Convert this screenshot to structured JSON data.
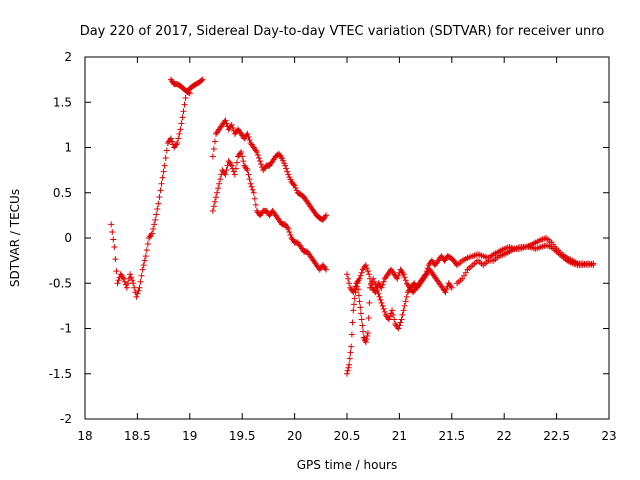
{
  "chart_data": {
    "type": "scatter",
    "title": "Day 220 of 2017, Sidereal Day-to-day VTEC variation (SDTVAR) for receiver unro",
    "xlabel": "GPS time / hours",
    "ylabel": "SDTVAR / TECUs",
    "xlim": [
      18,
      23
    ],
    "ylim": [
      -2,
      2
    ],
    "xticks": [
      "18",
      "18.5",
      "19",
      "19.5",
      "20",
      "20.5",
      "21",
      "21.5",
      "22",
      "22.5",
      "23"
    ],
    "yticks": [
      "-2",
      "-1.5",
      "-1",
      "-0.5",
      "0",
      "0.5",
      "1",
      "1.5",
      "2"
    ],
    "marker": "+",
    "color": "#e00000",
    "grid": false,
    "series": [
      {
        "name": "SDTVAR",
        "segments": [
          {
            "x": [
              18.25,
              18.28,
              18.31,
              18.34,
              18.37,
              18.4,
              18.43,
              18.46,
              18.49,
              18.52,
              18.55,
              18.58,
              18.61,
              18.64,
              18.67,
              18.7,
              18.73,
              18.76,
              18.79,
              18.82,
              18.85,
              18.88,
              18.91,
              18.94,
              18.97,
              19.0,
              19.03,
              19.06,
              19.09,
              19.12
            ],
            "y": [
              0.15,
              -0.1,
              -0.5,
              -0.4,
              -0.45,
              -0.55,
              -0.4,
              -0.5,
              -0.65,
              -0.55,
              -0.35,
              -0.2,
              0.0,
              0.05,
              0.2,
              0.38,
              0.6,
              0.8,
              1.05,
              1.1,
              1.0,
              1.05,
              1.2,
              1.4,
              1.62,
              1.65,
              1.68,
              1.7,
              1.72,
              1.75
            ]
          },
          {
            "x": [
              18.82,
              18.85,
              18.88,
              18.91,
              18.94,
              18.97,
              19.0
            ],
            "y": [
              1.75,
              1.7,
              1.7,
              1.68,
              1.65,
              1.62,
              1.6
            ]
          },
          {
            "x": [
              19.22,
              19.25,
              19.28,
              19.31,
              19.34,
              19.37,
              19.4,
              19.43,
              19.46,
              19.49,
              19.52,
              19.55,
              19.58,
              19.61,
              19.64,
              19.67,
              19.7,
              19.73,
              19.76,
              19.79,
              19.82,
              19.85,
              19.88,
              19.91,
              19.94,
              19.97,
              20.0,
              20.03,
              20.06,
              20.09,
              20.12,
              20.15,
              20.18,
              20.21,
              20.24,
              20.27,
              20.3
            ],
            "y": [
              0.9,
              1.15,
              1.2,
              1.25,
              1.3,
              1.2,
              1.25,
              1.15,
              1.2,
              1.15,
              1.1,
              1.15,
              1.05,
              1.0,
              0.95,
              0.85,
              0.75,
              0.8,
              0.8,
              0.85,
              0.9,
              0.93,
              0.88,
              0.8,
              0.7,
              0.62,
              0.58,
              0.5,
              0.48,
              0.45,
              0.4,
              0.35,
              0.3,
              0.25,
              0.22,
              0.2,
              0.25
            ]
          },
          {
            "x": [
              19.22,
              19.25,
              19.28,
              19.31,
              19.34,
              19.37,
              19.4,
              19.43,
              19.46,
              19.49,
              19.52,
              19.55,
              19.58,
              19.61,
              19.64,
              19.67,
              19.7,
              19.73,
              19.76,
              19.79,
              19.82,
              19.85,
              19.88,
              19.91,
              19.94,
              19.97,
              20.0,
              20.03,
              20.06,
              20.09,
              20.12,
              20.15,
              20.18,
              20.21,
              20.24,
              20.27,
              20.3
            ],
            "y": [
              0.3,
              0.45,
              0.6,
              0.75,
              0.7,
              0.85,
              0.8,
              0.7,
              0.9,
              0.95,
              0.8,
              0.75,
              0.6,
              0.5,
              0.3,
              0.25,
              0.3,
              0.3,
              0.25,
              0.3,
              0.25,
              0.2,
              0.15,
              0.15,
              0.1,
              0.0,
              -0.05,
              -0.05,
              -0.1,
              -0.15,
              -0.15,
              -0.2,
              -0.25,
              -0.3,
              -0.35,
              -0.3,
              -0.35
            ]
          },
          {
            "x": [
              20.5,
              20.52,
              20.54,
              20.56,
              20.58,
              20.6,
              20.62,
              20.64,
              20.66,
              20.68,
              20.7,
              20.72,
              20.75,
              20.78,
              20.81,
              20.84,
              20.87,
              20.9,
              20.93,
              20.96,
              20.99,
              21.02,
              21.05,
              21.08,
              21.11,
              21.14,
              21.17,
              21.2,
              21.23,
              21.26,
              21.29,
              21.32,
              21.35,
              21.38,
              21.41,
              21.44,
              21.47,
              21.5
            ],
            "y": [
              -1.5,
              -1.4,
              -1.2,
              -0.8,
              -0.6,
              -0.5,
              -0.7,
              -0.9,
              -1.1,
              -1.15,
              -1.05,
              -0.55,
              -0.45,
              -0.55,
              -0.65,
              -0.75,
              -0.85,
              -0.9,
              -0.8,
              -0.95,
              -1.0,
              -0.9,
              -0.75,
              -0.6,
              -0.55,
              -0.5,
              -0.55,
              -0.5,
              -0.45,
              -0.4,
              -0.35,
              -0.4,
              -0.45,
              -0.5,
              -0.55,
              -0.6,
              -0.5,
              -0.55
            ]
          },
          {
            "x": [
              20.5,
              20.53,
              20.56,
              20.59,
              20.62,
              20.65,
              20.68,
              20.71,
              20.74,
              20.77,
              20.8,
              20.83,
              20.86,
              20.89,
              20.92,
              20.95,
              20.98,
              21.01,
              21.04,
              21.07,
              21.1,
              21.13,
              21.16,
              21.19,
              21.22,
              21.25,
              21.28,
              21.31,
              21.34,
              21.37,
              21.4,
              21.43,
              21.46,
              21.49,
              21.52,
              21.55
            ],
            "y": [
              -0.4,
              -0.55,
              -0.6,
              -0.5,
              -0.45,
              -0.35,
              -0.3,
              -0.4,
              -0.55,
              -0.6,
              -0.5,
              -0.55,
              -0.45,
              -0.4,
              -0.35,
              -0.4,
              -0.45,
              -0.35,
              -0.4,
              -0.5,
              -0.55,
              -0.6,
              -0.55,
              -0.5,
              -0.45,
              -0.4,
              -0.3,
              -0.25,
              -0.3,
              -0.25,
              -0.2,
              -0.25,
              -0.2,
              -0.22,
              -0.25,
              -0.3
            ]
          },
          {
            "x": [
              21.55,
              21.6,
              21.65,
              21.7,
              21.75,
              21.8,
              21.85,
              21.9,
              21.95,
              22.0,
              22.05,
              22.1,
              22.15,
              22.2,
              22.25,
              22.3,
              22.35,
              22.4,
              22.45,
              22.5,
              22.55,
              22.6,
              22.65,
              22.7,
              22.75,
              22.8,
              22.85
            ],
            "y": [
              -0.5,
              -0.45,
              -0.35,
              -0.3,
              -0.25,
              -0.3,
              -0.25,
              -0.25,
              -0.2,
              -0.18,
              -0.15,
              -0.12,
              -0.12,
              -0.1,
              -0.08,
              -0.05,
              -0.02,
              0.0,
              -0.05,
              -0.12,
              -0.18,
              -0.22,
              -0.25,
              -0.28,
              -0.28,
              -0.3,
              -0.28
            ]
          },
          {
            "x": [
              21.55,
              21.6,
              21.65,
              21.7,
              21.75,
              21.8,
              21.85,
              21.9,
              21.95,
              22.0,
              22.05,
              22.1,
              22.15,
              22.2,
              22.25,
              22.3,
              22.35,
              22.4,
              22.45,
              22.5,
              22.55,
              22.6,
              22.65,
              22.7,
              22.75,
              22.8,
              22.85
            ],
            "y": [
              -0.3,
              -0.25,
              -0.22,
              -0.2,
              -0.18,
              -0.2,
              -0.22,
              -0.18,
              -0.15,
              -0.12,
              -0.1,
              -0.12,
              -0.1,
              -0.1,
              -0.1,
              -0.12,
              -0.1,
              -0.08,
              -0.1,
              -0.15,
              -0.2,
              -0.25,
              -0.28,
              -0.3,
              -0.3,
              -0.28,
              -0.3
            ]
          }
        ]
      }
    ]
  }
}
